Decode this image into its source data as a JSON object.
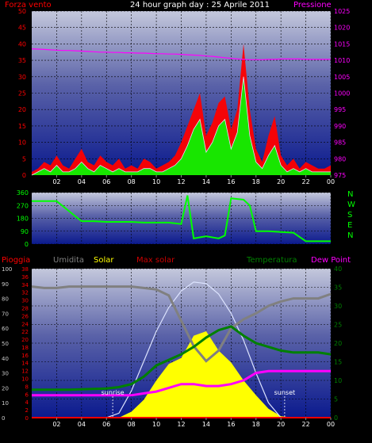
{
  "title": "24 hour graph day : 25 Aprile 2011",
  "colors": {
    "background": "#000000",
    "wind_avg": "#00ff00",
    "wind_gust": "#ff0000",
    "pressure": "#ff00ff",
    "temperature": "#008000",
    "humidity": "#808080",
    "solar": "#ffff00",
    "max_solar": "#ff0000",
    "dew_point": "#ff00ff",
    "rain": "#ff0000",
    "direction": "#00ff00"
  },
  "chart_data": [
    {
      "type": "line",
      "name": "wind-pressure",
      "left_label": "Forza vento",
      "right_label": "Pressione",
      "left_axis": {
        "ticks": [
          "0",
          "5",
          "10",
          "15",
          "20",
          "25",
          "30",
          "35",
          "40",
          "45",
          "50"
        ],
        "min": 0,
        "max": 50
      },
      "right_axis": {
        "ticks": [
          "975",
          "980",
          "985",
          "990",
          "995",
          "1000",
          "1005",
          "1010",
          "1015",
          "1020",
          "1025"
        ],
        "min": 975,
        "max": 1025
      },
      "x_ticks": [
        "02",
        "04",
        "06",
        "08",
        "10",
        "12",
        "14",
        "16",
        "18",
        "20",
        "22",
        "00"
      ],
      "x_hours": [
        0,
        0.5,
        1,
        1.5,
        2,
        2.5,
        3,
        3.5,
        4,
        4.5,
        5,
        5.5,
        6,
        6.5,
        7,
        7.5,
        8,
        8.5,
        9,
        9.5,
        10,
        10.5,
        11,
        11.5,
        12,
        12.5,
        13,
        13.5,
        14,
        14.5,
        15,
        15.5,
        16,
        16.5,
        17,
        17.5,
        18,
        18.5,
        19,
        19.5,
        20,
        20.5,
        21,
        21.5,
        22,
        22.5,
        23,
        23.5,
        24
      ],
      "series": [
        {
          "key": "gust",
          "values": [
            1,
            2,
            4,
            3,
            6,
            3,
            2,
            5,
            8,
            4,
            3,
            6,
            4,
            3,
            5,
            2,
            3,
            2,
            5,
            4,
            2,
            3,
            4,
            6,
            10,
            15,
            20,
            25,
            12,
            16,
            22,
            24,
            14,
            20,
            40,
            20,
            8,
            4,
            12,
            18,
            6,
            3,
            5,
            2,
            4,
            3,
            2,
            2,
            3
          ]
        },
        {
          "key": "avg",
          "values": [
            0,
            1,
            2,
            1,
            3,
            1,
            1,
            2,
            4,
            2,
            1,
            3,
            2,
            1,
            2,
            1,
            1,
            1,
            2,
            2,
            1,
            1,
            2,
            3,
            5,
            9,
            14,
            17,
            7,
            10,
            15,
            17,
            8,
            13,
            30,
            12,
            4,
            2,
            6,
            9,
            3,
            1,
            2,
            1,
            2,
            1,
            1,
            1,
            1
          ]
        },
        {
          "key": "pressure",
          "values": [
            1013.5,
            1013.4,
            1013.3,
            1013.2,
            1013.1,
            1013.0,
            1013.0,
            1012.9,
            1012.8,
            1012.7,
            1012.6,
            1012.5,
            1012.5,
            1012.4,
            1012.4,
            1012.3,
            1012.3,
            1012.2,
            1012.2,
            1012.1,
            1012.0,
            1012.0,
            1011.9,
            1011.9,
            1011.8,
            1011.7,
            1011.6,
            1011.5,
            1011.3,
            1011.2,
            1011.0,
            1010.8,
            1010.6,
            1010.4,
            1010.3,
            1010.2,
            1010.2,
            1010.2,
            1010.3,
            1010.3,
            1010.4,
            1010.4,
            1010.4,
            1010.4,
            1010.3,
            1010.3,
            1010.3,
            1010.3,
            1010.3
          ]
        }
      ]
    },
    {
      "type": "line",
      "name": "wind-direction",
      "left_axis": {
        "ticks": [
          "0",
          "90",
          "180",
          "270",
          "360"
        ],
        "min": 0,
        "max": 360
      },
      "right_labels": [
        "N",
        "W",
        "S",
        "E",
        "N"
      ],
      "x_ticks": [
        "02",
        "04",
        "06",
        "08",
        "10",
        "12",
        "14",
        "16",
        "18",
        "20",
        "22",
        "00"
      ],
      "x_hours": [
        0,
        1,
        2,
        3,
        4,
        5,
        6,
        7,
        8,
        9,
        10,
        11,
        12,
        12.5,
        13,
        14,
        15,
        15.5,
        16,
        17,
        17.5,
        18,
        19,
        20,
        21,
        22,
        23,
        24
      ],
      "series": [
        {
          "key": "direction",
          "values": [
            300,
            300,
            300,
            230,
            160,
            160,
            155,
            155,
            155,
            150,
            150,
            150,
            140,
            340,
            40,
            55,
            40,
            60,
            320,
            310,
            270,
            90,
            90,
            85,
            80,
            20,
            20,
            20
          ]
        }
      ]
    },
    {
      "type": "line",
      "name": "temperature-humidity-solar",
      "legend": [
        "Pioggia",
        "Umidita",
        "Solar",
        "Max solar",
        "Temperatura",
        "Dew Point"
      ],
      "humidity_axis": {
        "ticks": [
          "0",
          "10",
          "20",
          "30",
          "40",
          "50",
          "60",
          "70",
          "80",
          "90",
          "100"
        ],
        "min": 0,
        "max": 100
      },
      "rain_axis": {
        "ticks": [
          "0",
          "2",
          "4",
          "6",
          "8",
          "10",
          "12",
          "14",
          "16",
          "18",
          "20",
          "22",
          "24",
          "26",
          "28",
          "30",
          "32",
          "34",
          "36",
          "38"
        ],
        "min": 0,
        "max": 38
      },
      "temp_axis": {
        "ticks": [
          "0",
          "5",
          "10",
          "15",
          "20",
          "25",
          "30",
          "35",
          "40"
        ],
        "min": 0,
        "max": 40
      },
      "x_ticks": [
        "02",
        "04",
        "06",
        "08",
        "10",
        "12",
        "14",
        "16",
        "18",
        "20",
        "22",
        "00"
      ],
      "annotations": [
        {
          "text": "sunrise",
          "hour": 6.5
        },
        {
          "text": "sunset",
          "hour": 20.3
        }
      ],
      "x_hours": [
        0,
        1,
        2,
        3,
        4,
        5,
        6,
        7,
        8,
        9,
        10,
        11,
        12,
        13,
        14,
        15,
        16,
        17,
        18,
        19,
        20,
        21,
        22,
        23,
        24
      ],
      "series": [
        {
          "key": "humidity",
          "values": [
            88,
            87,
            87,
            88,
            88,
            88,
            88,
            88,
            88,
            87,
            86,
            82,
            65,
            48,
            38,
            45,
            60,
            66,
            70,
            75,
            78,
            80,
            80,
            80,
            83
          ]
        },
        {
          "key": "temperature",
          "values": [
            7.5,
            7.5,
            7.5,
            7.5,
            7.6,
            7.7,
            7.8,
            8.2,
            9,
            11,
            14,
            15.5,
            17,
            19,
            21.5,
            23.5,
            24.5,
            22,
            20,
            19,
            18,
            17.5,
            17.5,
            17.5,
            17
          ]
        },
        {
          "key": "dew_point",
          "values": [
            6,
            6,
            6,
            6,
            6,
            6,
            6,
            6,
            6,
            6.5,
            7,
            8,
            9,
            9,
            8.5,
            8.5,
            9,
            10,
            12,
            12.5,
            12.5,
            12.5,
            12.5,
            12.5,
            12.5
          ]
        },
        {
          "key": "solar_pct",
          "values": [
            0,
            0,
            0,
            0,
            0,
            0,
            0,
            0,
            4,
            12,
            25,
            36,
            40,
            55,
            58,
            45,
            37,
            25,
            15,
            6,
            1,
            0,
            0,
            0,
            0
          ]
        },
        {
          "key": "max_solar_pct",
          "values": [
            0,
            0,
            0,
            0,
            0,
            0,
            0,
            3,
            18,
            38,
            58,
            74,
            85,
            91,
            90,
            83,
            70,
            52,
            30,
            10,
            0,
            0,
            0,
            0,
            0
          ]
        },
        {
          "key": "rain",
          "values": [
            0,
            0,
            0,
            0,
            0,
            0,
            0,
            0,
            0,
            0,
            0,
            0,
            0,
            0,
            0,
            0,
            0,
            0,
            0,
            0,
            0,
            0,
            0,
            0,
            0
          ]
        }
      ]
    }
  ]
}
